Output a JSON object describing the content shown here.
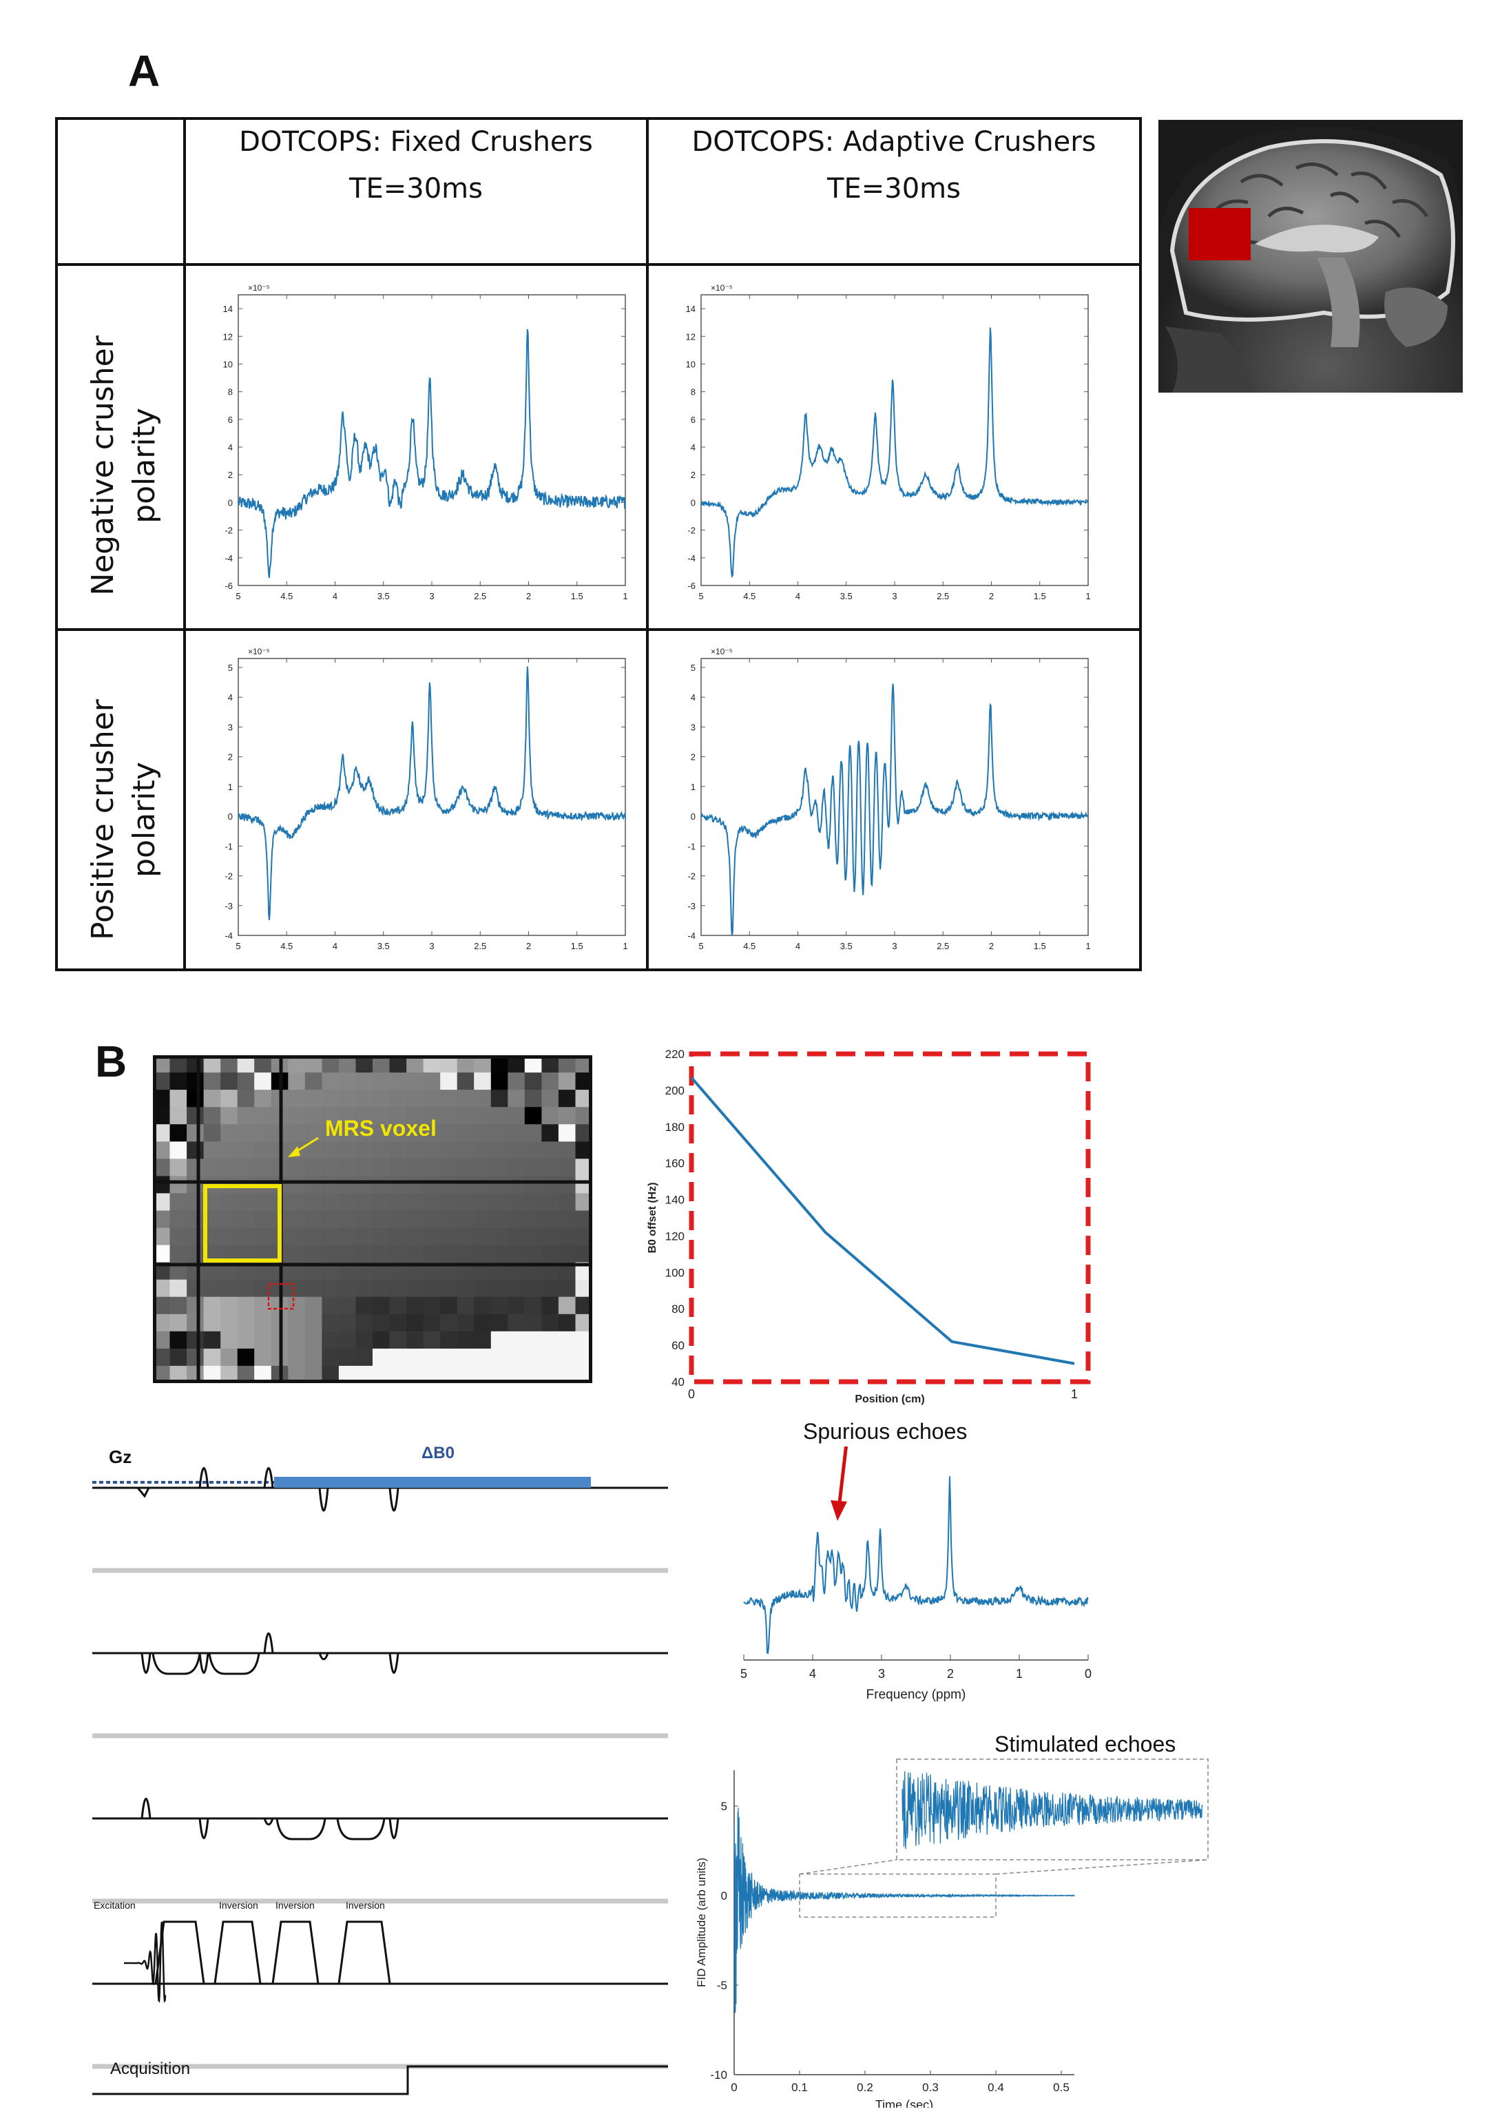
{
  "panel_a": {
    "label": "A",
    "col_headers": [
      {
        "line1": "DOTCOPS: Fixed Crushers",
        "line2": "TE=30ms"
      },
      {
        "line1": "DOTCOPS: Adaptive Crushers",
        "line2": "TE=30ms"
      }
    ],
    "row_labels": [
      {
        "line1": "Negative crusher",
        "line2": "polarity"
      },
      {
        "line1": "Positive crusher",
        "line2": "polarity"
      }
    ],
    "x_ticks": [
      "5",
      "4.5",
      "4",
      "3.5",
      "3",
      "2.5",
      "2",
      "1.5",
      "1"
    ],
    "neg_y_ticks": [
      "14",
      "12",
      "10",
      "8",
      "6",
      "4",
      "2",
      "0",
      "-2",
      "-4",
      "-6"
    ],
    "pos_y_ticks": [
      "5",
      "4",
      "3",
      "2",
      "1",
      "0",
      "-1",
      "-2",
      "-3",
      "-4"
    ],
    "exponent": "×10⁻⁵"
  },
  "panel_b": {
    "label": "B",
    "mrs_voxel_label": "MRS voxel",
    "b0_plot": {
      "ylabel": "B0 offset (Hz)",
      "xlabel": "Position (cm)",
      "y_ticks": [
        "220",
        "200",
        "180",
        "160",
        "140",
        "120",
        "100",
        "80",
        "60",
        "40"
      ],
      "x_ticks": [
        "0",
        "1"
      ]
    },
    "spurious_label": "Spurious echoes",
    "spectrum_plot": {
      "xlabel": "Frequency (ppm)",
      "x_ticks": [
        "5",
        "4",
        "3",
        "2",
        "1",
        "0"
      ]
    },
    "stimulated_label": "Stimulated echoes",
    "fid_plot": {
      "ylabel": "FID Amplitude (arb units)",
      "xlabel": "Time (sec)",
      "y_ticks": [
        "5",
        "0",
        "-5",
        "-10"
      ],
      "x_ticks": [
        "0",
        "0.1",
        "0.2",
        "0.3",
        "0.4",
        "0.5"
      ]
    },
    "sequence": {
      "gz_label": "Gz",
      "db0_label": "ΔB0",
      "rf_labels": [
        "Excitation",
        "Inversion",
        "Inversion",
        "Inversion"
      ],
      "acq_label": "Acquisition"
    }
  },
  "chart_data": [
    {
      "type": "line",
      "xlabel": "Position (cm)",
      "ylabel": "B0 offset (Hz)",
      "x": [
        0,
        0.35,
        0.68,
        1.0
      ],
      "series": [
        {
          "values": [
            207,
            122,
            62,
            50
          ]
        }
      ],
      "xlim": [
        0,
        1
      ],
      "ylim": [
        40,
        220
      ]
    }
  ]
}
